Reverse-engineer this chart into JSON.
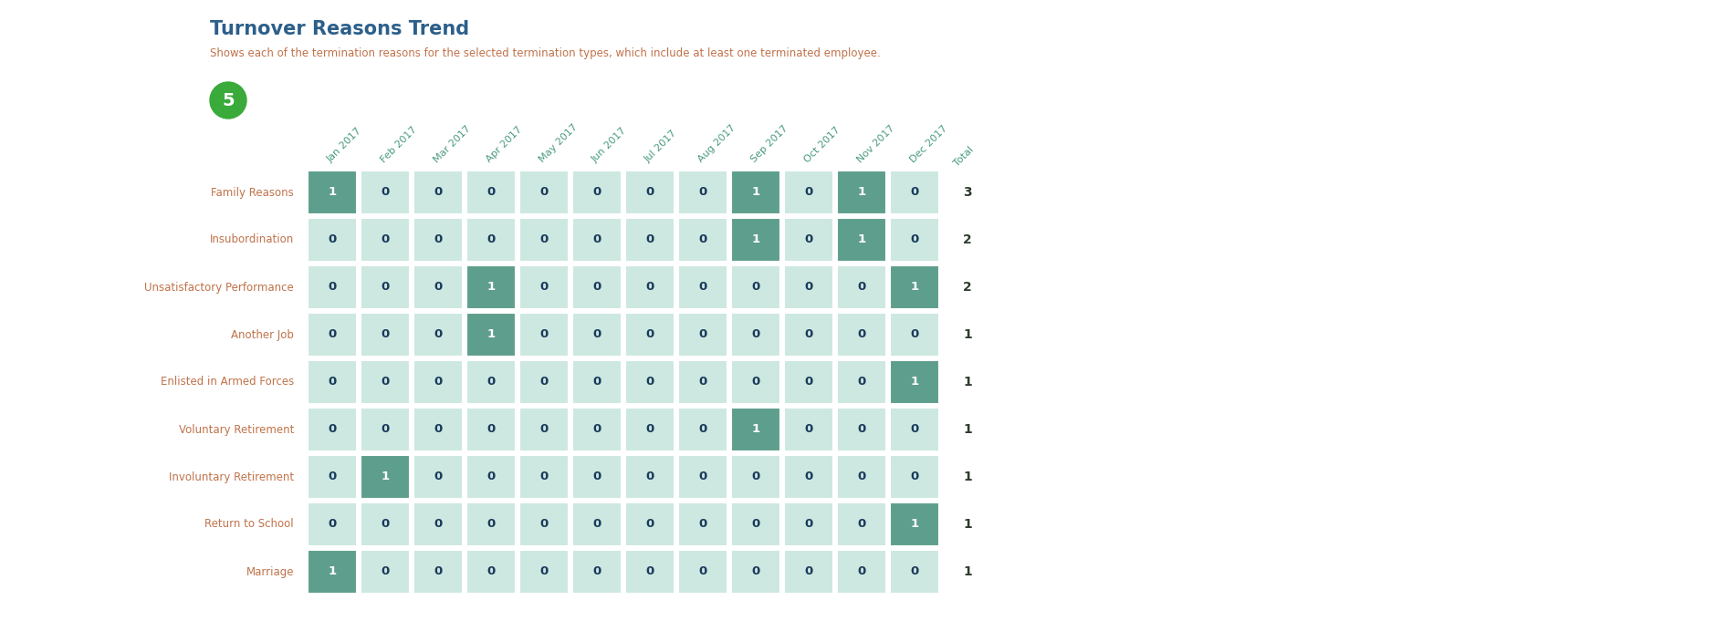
{
  "title": "Turnover Reasons Trend",
  "subtitle": "Shows each of the termination reasons for the selected termination types, which include at least one terminated employee.",
  "columns": [
    "Jan 2017",
    "Feb 2017",
    "Mar 2017",
    "Apr 2017",
    "May 2017",
    "Jun 2017",
    "Jul 2017",
    "Aug 2017",
    "Sep 2017",
    "Oct 2017",
    "Nov 2017",
    "Dec 2017",
    "Total"
  ],
  "rows": [
    "Family Reasons",
    "Insubordination",
    "Unsatisfactory Performance",
    "Another Job",
    "Enlisted in Armed Forces",
    "Voluntary Retirement",
    "Involuntary Retirement",
    "Return to School",
    "Marriage"
  ],
  "data": [
    [
      1,
      0,
      0,
      0,
      0,
      0,
      0,
      0,
      1,
      0,
      1,
      0,
      3
    ],
    [
      0,
      0,
      0,
      0,
      0,
      0,
      0,
      0,
      1,
      0,
      1,
      0,
      2
    ],
    [
      0,
      0,
      0,
      1,
      0,
      0,
      0,
      0,
      0,
      0,
      0,
      1,
      2
    ],
    [
      0,
      0,
      0,
      1,
      0,
      0,
      0,
      0,
      0,
      0,
      0,
      0,
      1
    ],
    [
      0,
      0,
      0,
      0,
      0,
      0,
      0,
      0,
      0,
      0,
      0,
      1,
      1
    ],
    [
      0,
      0,
      0,
      0,
      0,
      0,
      0,
      0,
      1,
      0,
      0,
      0,
      1
    ],
    [
      0,
      1,
      0,
      0,
      0,
      0,
      0,
      0,
      0,
      0,
      0,
      0,
      1
    ],
    [
      0,
      0,
      0,
      0,
      0,
      0,
      0,
      0,
      0,
      0,
      0,
      1,
      1
    ],
    [
      1,
      0,
      0,
      0,
      0,
      0,
      0,
      0,
      0,
      0,
      0,
      0,
      1
    ]
  ],
  "bg_color": "#ffffff",
  "title_color": "#2c5f8a",
  "subtitle_color": "#c0724a",
  "row_label_color": "#c0724a",
  "col_label_color": "#4a9a80",
  "cell_zero_color": "#cce8e0",
  "cell_one_color": "#5e9e8c",
  "text_zero_color": "#1a3a5c",
  "text_one_color": "#ffffff",
  "text_total_color": "#2d3a2d",
  "step_circle_color": "#3aaa3a",
  "step_number": "5"
}
